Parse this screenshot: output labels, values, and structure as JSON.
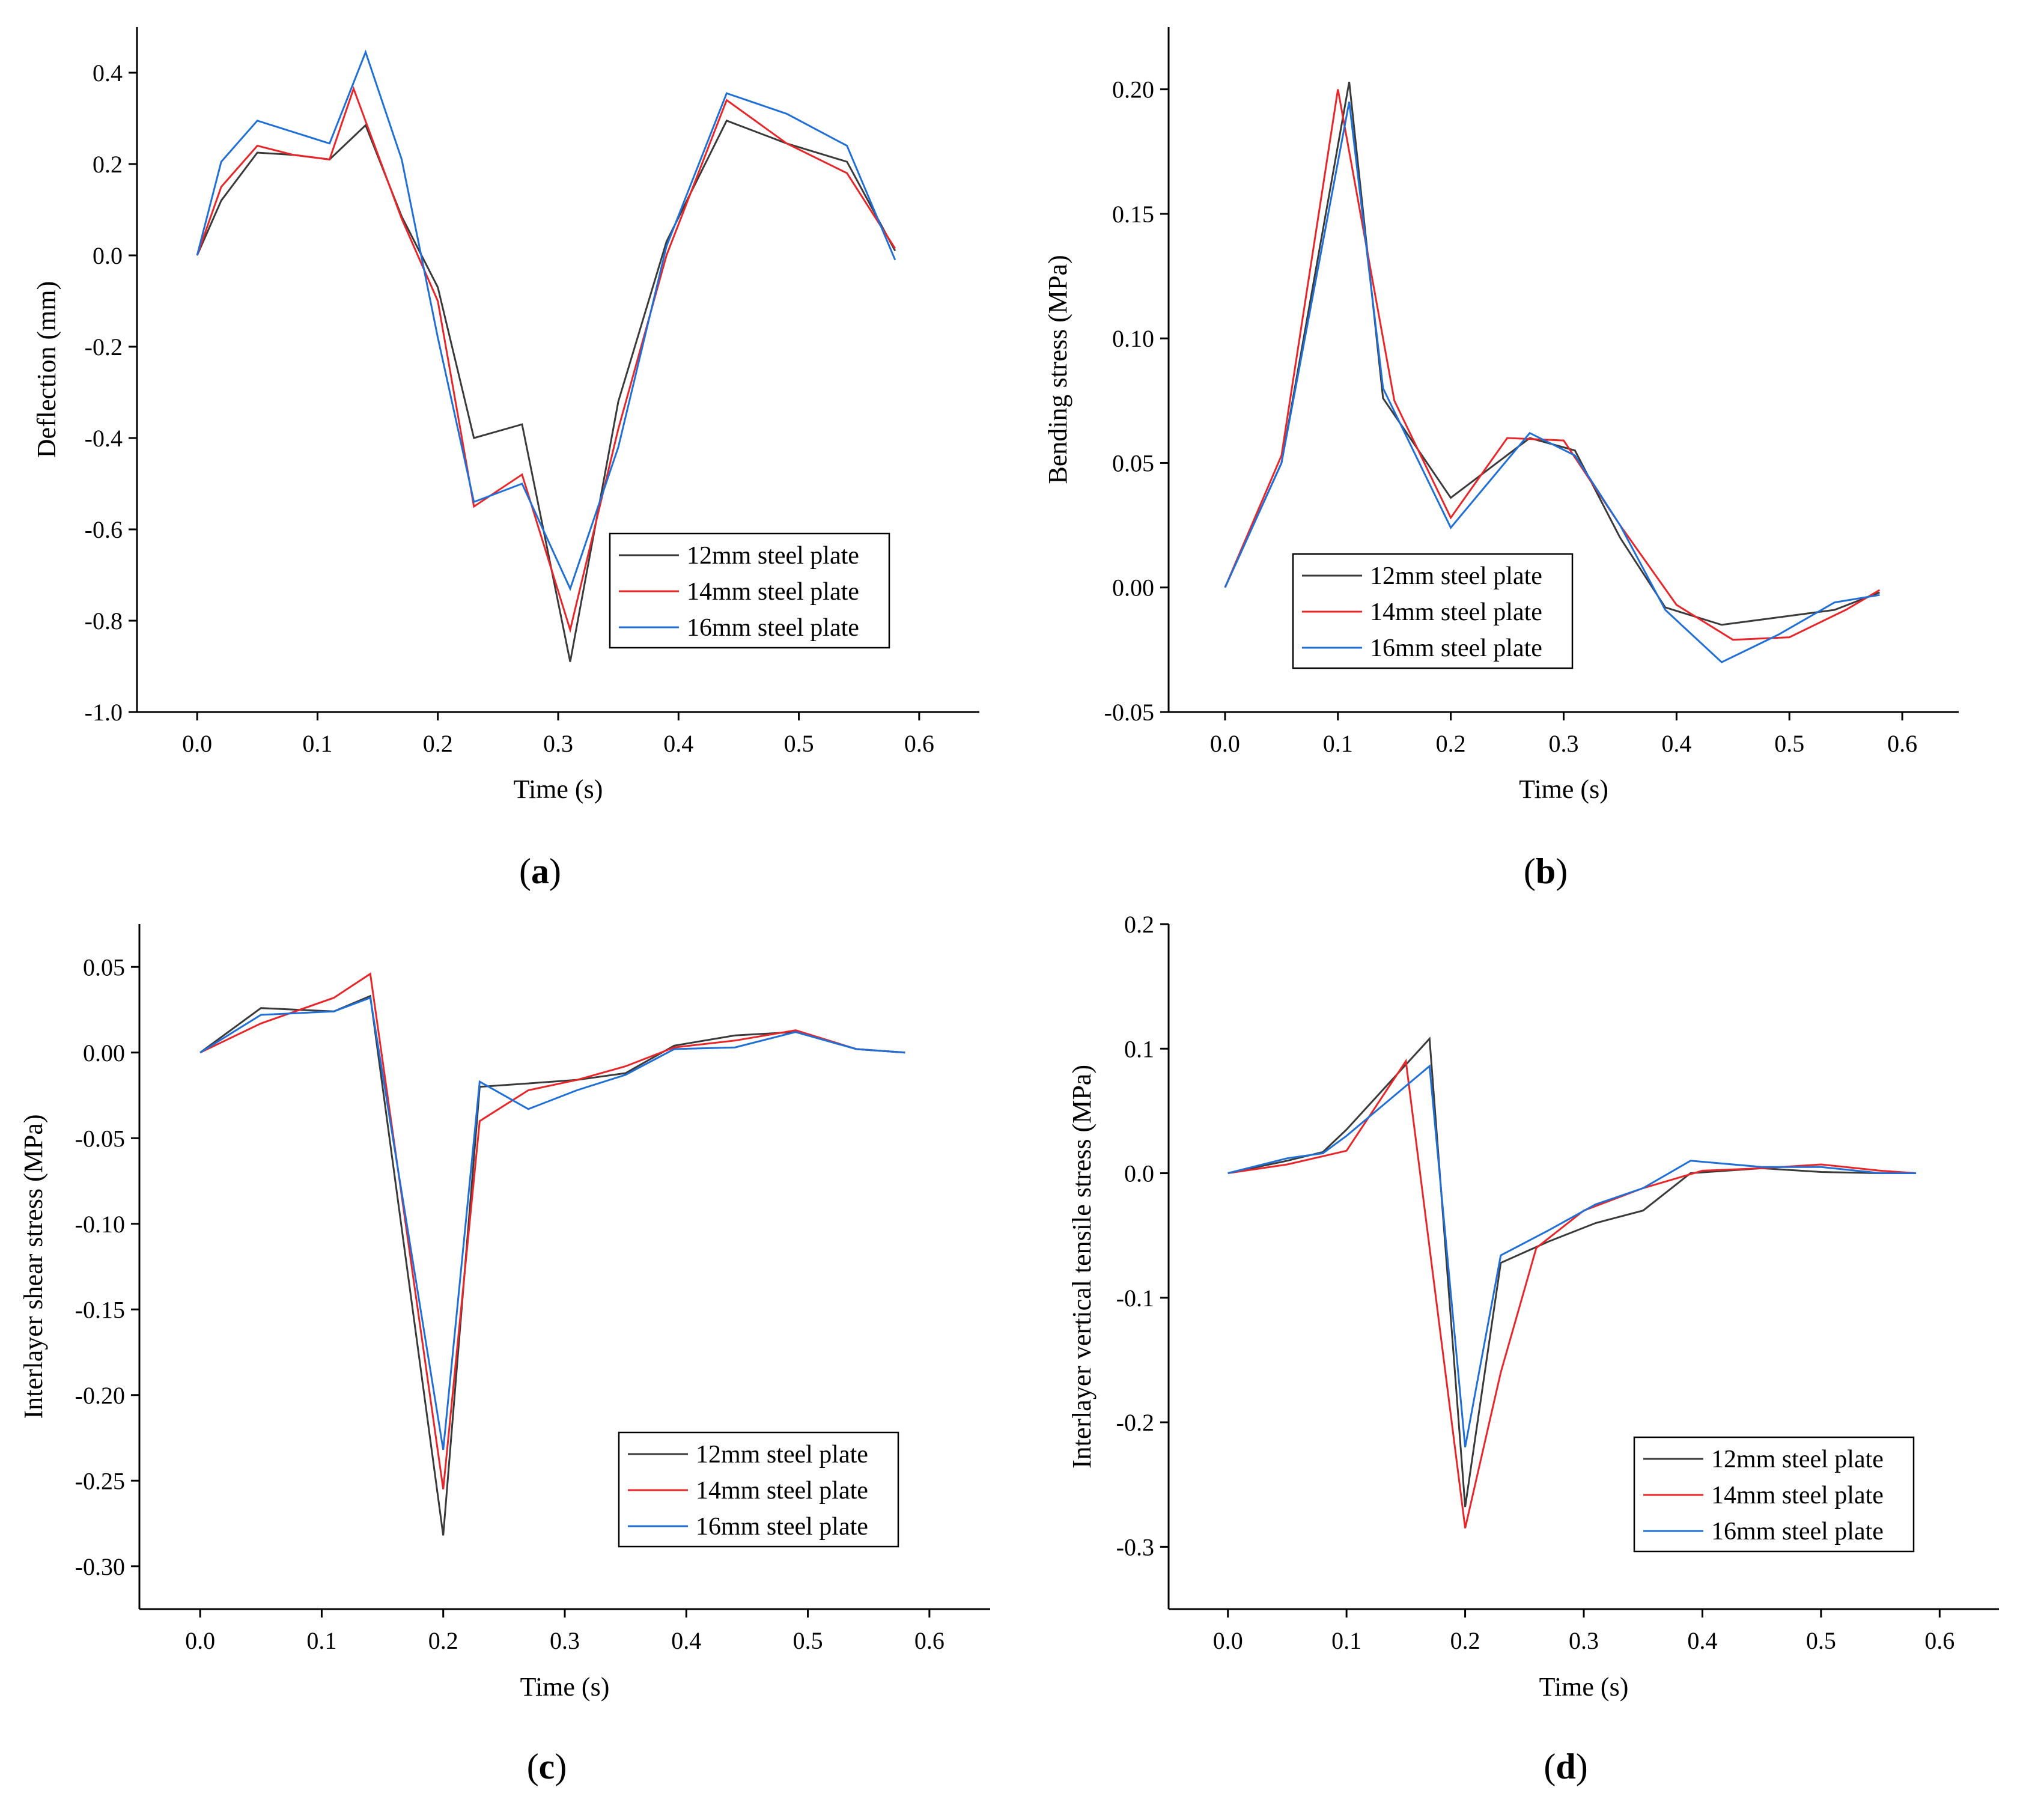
{
  "chart_data": [
    {
      "type": "line",
      "panel_label": "a",
      "xlabel": "Time (s)",
      "ylabel": "Deflection (mm)",
      "xlim": [
        -0.05,
        0.65
      ],
      "ylim": [
        -1.0,
        0.5
      ],
      "xticks": [
        0.0,
        0.1,
        0.2,
        0.3,
        0.4,
        0.5,
        0.6
      ],
      "xtick_labels": [
        "0.0",
        "0.1",
        "0.2",
        "0.3",
        "0.4",
        "0.5",
        "0.6"
      ],
      "yticks": [
        -1.0,
        -0.8,
        -0.6,
        -0.4,
        -0.2,
        0.0,
        0.2,
        0.4
      ],
      "ytick_labels": [
        "-1.0",
        "-0.8",
        "-0.6",
        "-0.4",
        "-0.2",
        "0.0",
        "0.2",
        "0.4"
      ],
      "legend_position": "lower-right",
      "series": [
        {
          "name": "12mm steel plate",
          "color": "#3a3a3a",
          "x": [
            0,
            0.02,
            0.05,
            0.08,
            0.11,
            0.14,
            0.17,
            0.2,
            0.23,
            0.27,
            0.31,
            0.35,
            0.39,
            0.44,
            0.49,
            0.54,
            0.58
          ],
          "y": [
            0,
            0.12,
            0.225,
            0.22,
            0.21,
            0.285,
            0.085,
            -0.07,
            -0.4,
            -0.37,
            -0.89,
            -0.32,
            0.03,
            0.295,
            0.245,
            0.205,
            0.01
          ]
        },
        {
          "name": "14mm steel plate",
          "color": "#e8262a",
          "x": [
            0,
            0.02,
            0.05,
            0.08,
            0.11,
            0.13,
            0.17,
            0.2,
            0.23,
            0.27,
            0.31,
            0.35,
            0.39,
            0.44,
            0.49,
            0.54,
            0.58
          ],
          "y": [
            0,
            0.15,
            0.24,
            0.22,
            0.21,
            0.365,
            0.08,
            -0.1,
            -0.55,
            -0.48,
            -0.82,
            -0.38,
            0.0,
            0.34,
            0.245,
            0.18,
            0.015
          ]
        },
        {
          "name": "16mm steel plate",
          "color": "#1f6fd6",
          "x": [
            0,
            0.02,
            0.05,
            0.08,
            0.11,
            0.14,
            0.17,
            0.2,
            0.23,
            0.27,
            0.31,
            0.35,
            0.39,
            0.44,
            0.49,
            0.54,
            0.58
          ],
          "y": [
            0,
            0.205,
            0.295,
            0.27,
            0.245,
            0.445,
            0.21,
            -0.18,
            -0.54,
            -0.5,
            -0.73,
            -0.42,
            0.02,
            0.355,
            0.31,
            0.24,
            -0.01
          ]
        }
      ]
    },
    {
      "type": "line",
      "panel_label": "b",
      "xlabel": "Time (s)",
      "ylabel": "Bending stress (MPa)",
      "xlim": [
        -0.05,
        0.65
      ],
      "ylim": [
        -0.05,
        0.225
      ],
      "xticks": [
        0.0,
        0.1,
        0.2,
        0.3,
        0.4,
        0.5,
        0.6
      ],
      "xtick_labels": [
        "0.0",
        "0.1",
        "0.2",
        "0.3",
        "0.4",
        "0.5",
        "0.6"
      ],
      "yticks": [
        -0.05,
        0.0,
        0.05,
        0.1,
        0.15,
        0.2
      ],
      "ytick_labels": [
        "-0.05",
        "0.00",
        "0.05",
        "0.10",
        "0.15",
        "0.20"
      ],
      "legend_position": "lower-left",
      "series": [
        {
          "name": "12mm steel plate",
          "color": "#3a3a3a",
          "x": [
            0,
            0.05,
            0.11,
            0.14,
            0.2,
            0.27,
            0.31,
            0.35,
            0.39,
            0.44,
            0.49,
            0.54,
            0.58
          ],
          "y": [
            0,
            0.05,
            0.203,
            0.076,
            0.036,
            0.06,
            0.055,
            0.02,
            -0.008,
            -0.015,
            -0.012,
            -0.009,
            -0.002
          ]
        },
        {
          "name": "14mm steel plate",
          "color": "#e8262a",
          "x": [
            0,
            0.05,
            0.1,
            0.15,
            0.2,
            0.25,
            0.3,
            0.35,
            0.4,
            0.45,
            0.5,
            0.55,
            0.58
          ],
          "y": [
            0,
            0.053,
            0.2,
            0.075,
            0.028,
            0.06,
            0.059,
            0.025,
            -0.007,
            -0.021,
            -0.02,
            -0.009,
            -0.001
          ]
        },
        {
          "name": "16mm steel plate",
          "color": "#1f6fd6",
          "x": [
            0,
            0.05,
            0.11,
            0.14,
            0.2,
            0.27,
            0.31,
            0.35,
            0.39,
            0.44,
            0.49,
            0.54,
            0.58
          ],
          "y": [
            0,
            0.05,
            0.195,
            0.08,
            0.024,
            0.062,
            0.053,
            0.025,
            -0.009,
            -0.03,
            -0.019,
            -0.006,
            -0.003
          ]
        }
      ]
    },
    {
      "type": "line",
      "panel_label": "c",
      "xlabel": "Time (s)",
      "ylabel": "Interlayer shear stress (MPa)",
      "xlim": [
        -0.05,
        0.65
      ],
      "ylim": [
        -0.325,
        0.075
      ],
      "xticks": [
        0.0,
        0.1,
        0.2,
        0.3,
        0.4,
        0.5,
        0.6
      ],
      "xtick_labels": [
        "0.0",
        "0.1",
        "0.2",
        "0.3",
        "0.4",
        "0.5",
        "0.6"
      ],
      "yticks": [
        -0.3,
        -0.25,
        -0.2,
        -0.15,
        -0.1,
        -0.05,
        0.0,
        0.05
      ],
      "ytick_labels": [
        "-0.30",
        "-0.25",
        "-0.20",
        "-0.15",
        "-0.10",
        "-0.05",
        "0.00",
        "0.05"
      ],
      "legend_position": "lower-right",
      "series": [
        {
          "name": "12mm steel plate",
          "color": "#3a3a3a",
          "x": [
            0,
            0.05,
            0.11,
            0.14,
            0.2,
            0.23,
            0.27,
            0.31,
            0.35,
            0.39,
            0.44,
            0.49,
            0.54,
            0.58
          ],
          "y": [
            0,
            0.026,
            0.024,
            0.033,
            -0.282,
            -0.02,
            -0.018,
            -0.016,
            -0.012,
            0.004,
            0.01,
            0.012,
            0.002,
            0.0
          ]
        },
        {
          "name": "14mm steel plate",
          "color": "#e8262a",
          "x": [
            0,
            0.05,
            0.11,
            0.14,
            0.2,
            0.23,
            0.27,
            0.31,
            0.35,
            0.39,
            0.44,
            0.49,
            0.54,
            0.58
          ],
          "y": [
            0,
            0.017,
            0.032,
            0.046,
            -0.255,
            -0.04,
            -0.022,
            -0.016,
            -0.008,
            0.003,
            0.007,
            0.013,
            0.002,
            0.0
          ]
        },
        {
          "name": "16mm steel plate",
          "color": "#1f6fd6",
          "x": [
            0,
            0.05,
            0.11,
            0.14,
            0.2,
            0.23,
            0.27,
            0.31,
            0.35,
            0.39,
            0.44,
            0.49,
            0.54,
            0.58
          ],
          "y": [
            0,
            0.022,
            0.024,
            0.032,
            -0.232,
            -0.017,
            -0.033,
            -0.022,
            -0.013,
            0.002,
            0.003,
            0.012,
            0.002,
            0.0
          ]
        }
      ]
    },
    {
      "type": "line",
      "panel_label": "d",
      "xlabel": "Time (s)",
      "ylabel": "Interlayer vertical tensile stress (MPa)",
      "xlim": [
        -0.05,
        0.65
      ],
      "ylim": [
        -0.35,
        0.2
      ],
      "xticks": [
        0.0,
        0.1,
        0.2,
        0.3,
        0.4,
        0.5,
        0.6
      ],
      "xtick_labels": [
        "0.0",
        "0.1",
        "0.2",
        "0.3",
        "0.4",
        "0.5",
        "0.6"
      ],
      "yticks": [
        -0.3,
        -0.2,
        -0.1,
        0.0,
        0.1,
        0.2
      ],
      "ytick_labels": [
        "-0.3",
        "-0.2",
        "-0.1",
        "0.0",
        "0.1",
        "0.2"
      ],
      "legend_position": "lower-right",
      "series": [
        {
          "name": "12mm steel plate",
          "color": "#3a3a3a",
          "x": [
            0,
            0.05,
            0.08,
            0.1,
            0.17,
            0.2,
            0.23,
            0.27,
            0.31,
            0.35,
            0.39,
            0.45,
            0.5,
            0.55,
            0.58
          ],
          "y": [
            0,
            0.01,
            0.017,
            0.035,
            0.108,
            -0.268,
            -0.072,
            -0.055,
            -0.04,
            -0.03,
            0.0,
            0.004,
            0.001,
            0.0,
            0.0
          ]
        },
        {
          "name": "14mm steel plate",
          "color": "#e8262a",
          "x": [
            0,
            0.05,
            0.1,
            0.15,
            0.2,
            0.23,
            0.26,
            0.3,
            0.35,
            0.4,
            0.45,
            0.5,
            0.55,
            0.58
          ],
          "y": [
            0,
            0.007,
            0.018,
            0.09,
            -0.285,
            -0.16,
            -0.06,
            -0.03,
            -0.012,
            0.002,
            0.004,
            0.007,
            0.002,
            0.0
          ]
        },
        {
          "name": "16mm steel plate",
          "color": "#1f6fd6",
          "x": [
            0,
            0.05,
            0.08,
            0.1,
            0.17,
            0.2,
            0.23,
            0.27,
            0.31,
            0.35,
            0.39,
            0.45,
            0.5,
            0.55,
            0.58
          ],
          "y": [
            0,
            0.012,
            0.016,
            0.03,
            0.086,
            -0.22,
            -0.066,
            -0.046,
            -0.025,
            -0.012,
            0.01,
            0.005,
            0.005,
            0.0,
            0.0
          ]
        }
      ]
    }
  ]
}
